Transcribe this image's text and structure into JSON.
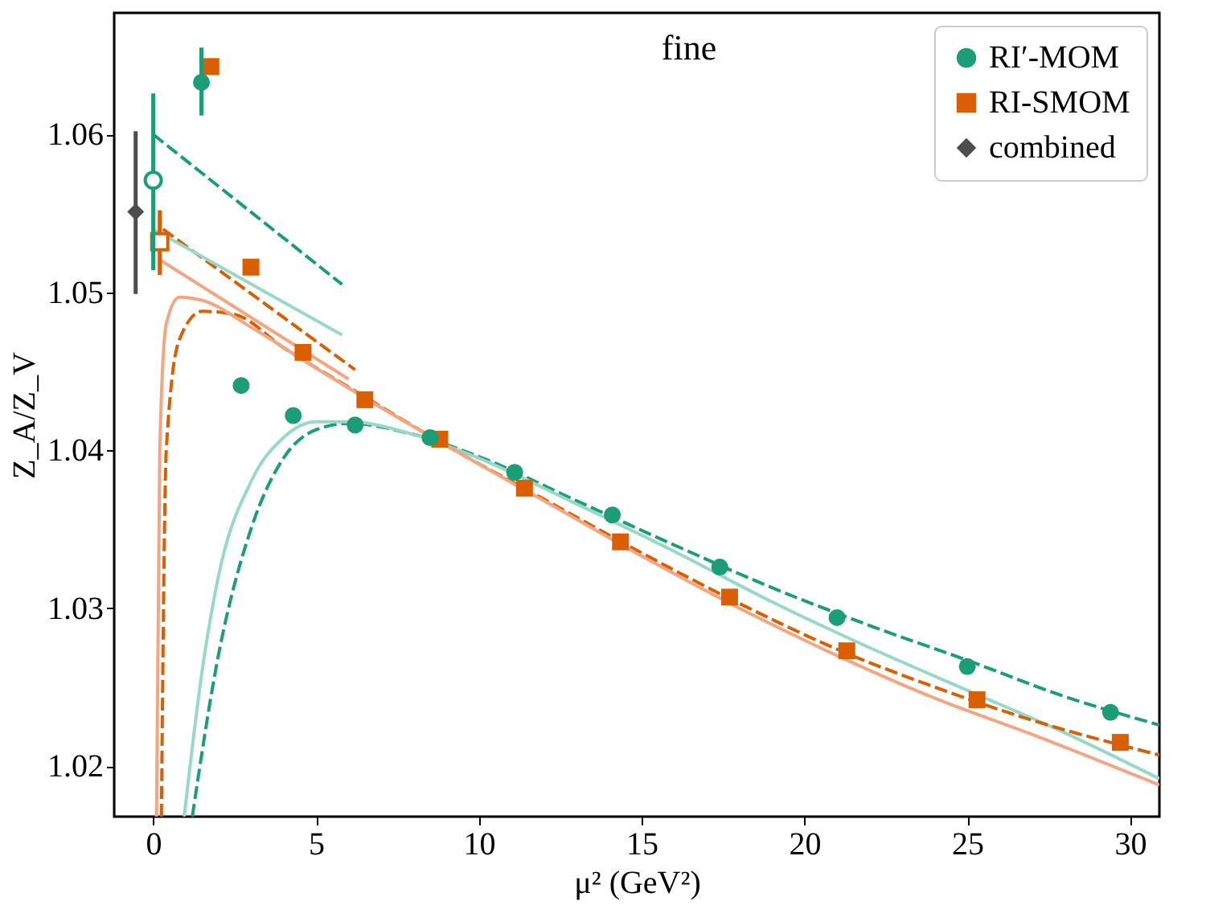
{
  "chart_data": {
    "type": "scatter",
    "title": "fine",
    "xlabel": "μ² (GeV²)",
    "ylabel": "Z_A/Z_V",
    "xlim": [
      -1.2,
      30.9
    ],
    "ylim": [
      1.0168,
      1.0677
    ],
    "xticks": [
      0,
      5,
      10,
      15,
      20,
      25,
      30
    ],
    "yticks": [
      1.02,
      1.03,
      1.04,
      1.05,
      1.06
    ],
    "grid": false,
    "legend": "top right",
    "series": [
      {
        "name": "RI′-MOM",
        "marker": "circle",
        "color": "#1b9e77",
        "x": [
          1.48,
          2.7,
          4.3,
          6.2,
          8.5,
          11.1,
          14.1,
          17.4,
          21.0,
          25.0,
          29.4
        ],
        "values": [
          1.0633,
          1.0441,
          1.0422,
          1.0416,
          1.0408,
          1.0386,
          1.0359,
          1.0326,
          1.0294,
          1.0263,
          1.0234
        ],
        "errors": [
          [
            1.0612,
            1.0655
          ],
          0.0005,
          null,
          null,
          null,
          null,
          null,
          null,
          null,
          null,
          null
        ]
      },
      {
        "name": "RI-SMOM",
        "marker": "square",
        "color": "#d95f02",
        "x": [
          1.77,
          3.0,
          4.6,
          6.5,
          8.8,
          11.4,
          14.35,
          17.7,
          21.3,
          25.3,
          29.7
        ],
        "values": [
          1.0643,
          1.0516,
          1.0462,
          1.0432,
          1.0407,
          1.0376,
          1.0342,
          1.0307,
          1.0273,
          1.0242,
          1.0215
        ]
      },
      {
        "name": "combined",
        "marker": "diamond",
        "color": "#4d4d4d",
        "x": [
          -0.54
        ],
        "values": [
          1.0551
        ],
        "errors": [
          [
            1.0499,
            1.0602
          ]
        ]
      },
      {
        "marker": "circle",
        "color": "#1b9e77",
        "x": [
          0
        ],
        "values": [
          1.0571
        ],
        "errors": [
          [
            1.0514,
            1.0626
          ]
        ]
      },
      {
        "marker": "square",
        "color": "#d95f02",
        "x": [
          0.2
        ],
        "values": [
          1.0532
        ],
        "errors": [
          [
            1.0511,
            1.0552
          ]
        ]
      },
      {
        "type": "line",
        "line_style": "dashed",
        "color": "#1b9e77",
        "x": [
          0,
          5.8
        ],
        "values": [
          1.06,
          1.0505
        ]
      },
      {
        "type": "line",
        "line_style": "solid",
        "color": "#99d8c9",
        "x": [
          0,
          5.8
        ],
        "values": [
          1.054,
          1.0473
        ]
      },
      {
        "type": "line",
        "line_style": "dashed",
        "color": "#d95f02",
        "x": [
          0.3,
          6.2
        ],
        "values": [
          1.054,
          1.0451
        ]
      },
      {
        "type": "line",
        "line_style": "solid",
        "color": "#f4a582",
        "x": [
          0.25,
          6
        ],
        "values": [
          1.052,
          1.0445
        ]
      },
      {
        "type": "line",
        "line_style": "solid",
        "color": "#f4a582",
        "x": [
          0.1,
          0.2,
          0.4,
          0.8,
          1.5,
          3,
          5,
          7,
          9,
          12,
          15,
          18,
          21,
          24,
          27,
          30.9
        ],
        "values": [
          1.0168,
          1.04,
          1.048,
          1.0497,
          1.0495,
          1.0478,
          1.0452,
          1.0427,
          1.0403,
          1.0368,
          1.0333,
          1.03,
          1.027,
          1.0243,
          1.022,
          1.0188
        ]
      },
      {
        "type": "line",
        "line_style": "dashed",
        "color": "#d95f02",
        "x": [
          0.25,
          0.4,
          0.8,
          1.5,
          2.5,
          4,
          6,
          9,
          12,
          15,
          18,
          21,
          24,
          27,
          30.9
        ],
        "values": [
          1.0168,
          1.04,
          1.047,
          1.0488,
          1.0486,
          1.0465,
          1.044,
          1.0403,
          1.0369,
          1.0335,
          1.0303,
          1.0274,
          1.025,
          1.0229,
          1.0207
        ]
      },
      {
        "type": "line",
        "line_style": "solid",
        "color": "#99d8c9",
        "x": [
          0.95,
          1.5,
          2,
          3,
          4,
          5,
          6,
          8,
          10,
          13,
          16,
          19,
          22,
          25,
          28,
          30.9
        ],
        "values": [
          1.0168,
          1.026,
          1.032,
          1.038,
          1.0408,
          1.0418,
          1.0418,
          1.041,
          1.0395,
          1.0366,
          1.0336,
          1.0304,
          1.0275,
          1.0248,
          1.0221,
          1.0192
        ]
      },
      {
        "type": "line",
        "line_style": "dashed",
        "color": "#1b9e77",
        "x": [
          1.2,
          2,
          3,
          4,
          5,
          6,
          8,
          10,
          13,
          16,
          19,
          22,
          25,
          28,
          30.9
        ],
        "values": [
          1.0168,
          1.027,
          1.035,
          1.0395,
          1.0413,
          1.0417,
          1.041,
          1.0396,
          1.0368,
          1.034,
          1.0313,
          1.0289,
          1.0267,
          1.0244,
          1.0226
        ]
      }
    ]
  }
}
